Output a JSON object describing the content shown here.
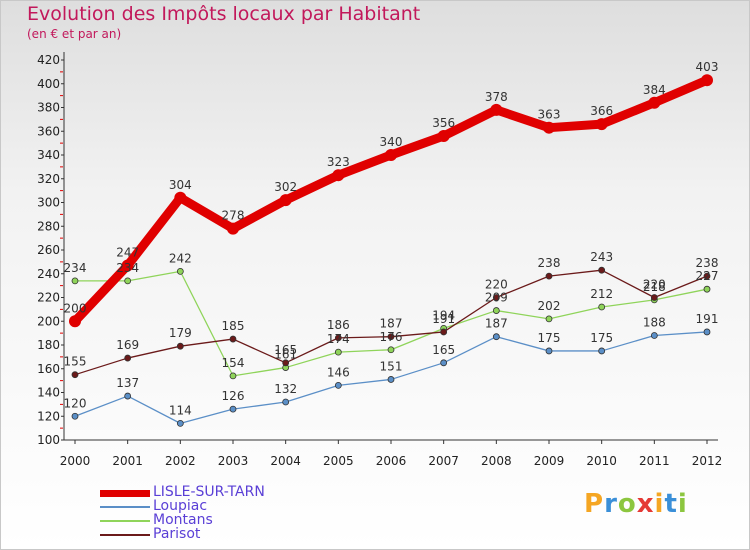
{
  "title": "Evolution des Impôts locaux par Habitant",
  "subtitle": "(en € et par an)",
  "logo": {
    "text": "Proxiti",
    "letters": [
      {
        "ch": "P",
        "color": "#f5a623"
      },
      {
        "ch": "r",
        "color": "#3a8fd8"
      },
      {
        "ch": "o",
        "color": "#8cc63f"
      },
      {
        "ch": "x",
        "color": "#e53935"
      },
      {
        "ch": "i",
        "color": "#f5a623"
      },
      {
        "ch": "t",
        "color": "#3a8fd8"
      },
      {
        "ch": "i",
        "color": "#8cc63f"
      }
    ]
  },
  "chart_data": {
    "type": "line",
    "title": "Evolution des Impôts locaux par Habitant",
    "subtitle": "(en € et par an)",
    "xlabel": "",
    "ylabel": "",
    "ylim": [
      100,
      420
    ],
    "ytick_step": 20,
    "grid": false,
    "legend_position": "bottom-left",
    "x": [
      "2000",
      "2001",
      "2002",
      "2003",
      "2004",
      "2005",
      "2006",
      "2007",
      "2008",
      "2009",
      "2010",
      "2011",
      "2012"
    ],
    "series": [
      {
        "name": "LISLE-SUR-TARN",
        "color": "#e00000",
        "values": [
          200,
          247,
          304,
          278,
          302,
          323,
          340,
          356,
          378,
          363,
          366,
          384,
          403
        ]
      },
      {
        "name": "Loupiac",
        "color": "#5b8fc7",
        "values": [
          120,
          137,
          114,
          126,
          132,
          146,
          151,
          165,
          187,
          175,
          175,
          188,
          191
        ]
      },
      {
        "name": "Montans",
        "color": "#8fd45a",
        "values": [
          234,
          234,
          242,
          154,
          161,
          174,
          176,
          194,
          209,
          202,
          212,
          218,
          227
        ]
      },
      {
        "name": "Parisot",
        "color": "#6b1a1a",
        "values": [
          155,
          169,
          179,
          185,
          165,
          186,
          187,
          191,
          220,
          238,
          243,
          220,
          238
        ]
      }
    ]
  }
}
